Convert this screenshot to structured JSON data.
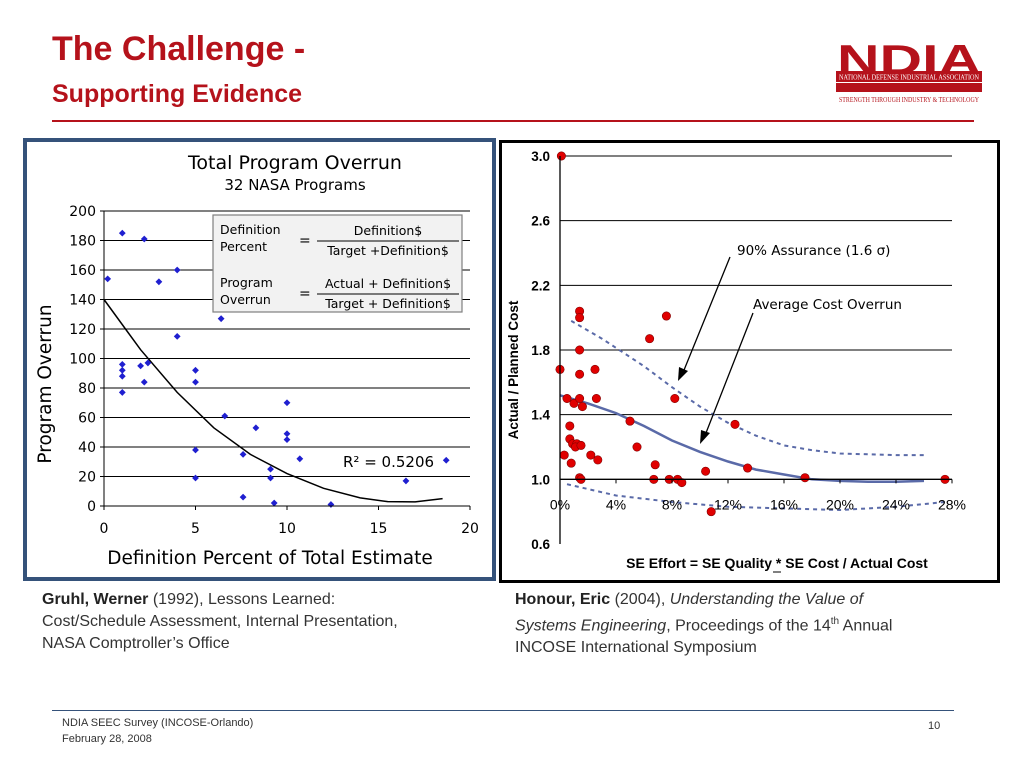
{
  "slide": {
    "title": "The Challenge -",
    "subtitle": "Supporting Evidence",
    "logo": {
      "letters": "NDIA",
      "line1": "NATIONAL DEFENSE INDUSTRIAL ASSOCIATION",
      "line2": "STRENGTH THROUGH INDUSTRY & TECHNOLOGY",
      "color": "#b5121b"
    },
    "footer": {
      "line1": "NDIA SEEC Survey (INCOSE-Orlando)",
      "line2": "February 28, 2008",
      "page": "10"
    },
    "citation_left": {
      "author": "Gruhl, Werner",
      "year": " (1992), Lessons Learned:",
      "line2": "Cost/Schedule Assessment, Internal Presentation,",
      "line3": "NASA Comptroller’s Office"
    },
    "citation_right": {
      "author": "Honour, Eric",
      "year": " (2004), ",
      "title_italic_1": "Understanding the Value of",
      "title_italic_2": "Systems Engineering",
      "rest_1": ", Proceedings of the 14",
      "sup": "th",
      "rest_2": " Annual",
      "line3": "INCOSE International Symposium"
    }
  },
  "chart_data": [
    {
      "type": "scatter",
      "title": "Total Program Overrun",
      "subtitle": "32 NASA Programs",
      "xlabel": "Definition Percent of Total Estimate",
      "ylabel": "Program Overrun",
      "xlim": [
        0,
        20
      ],
      "ylim": [
        0,
        200
      ],
      "xticks": [
        0,
        5,
        10,
        15,
        20
      ],
      "yticks": [
        0,
        20,
        40,
        60,
        80,
        100,
        120,
        140,
        160,
        180,
        200
      ],
      "grid": "horizontal",
      "marker_color": "#1f1fd0",
      "trend_label": "R² = 0.5206",
      "trend": [
        [
          0,
          140
        ],
        [
          2,
          106
        ],
        [
          4,
          77
        ],
        [
          6,
          53
        ],
        [
          8,
          35
        ],
        [
          10,
          22
        ],
        [
          12,
          12
        ],
        [
          14,
          5.5
        ],
        [
          15.5,
          3
        ],
        [
          17,
          2.8
        ],
        [
          18.5,
          5
        ]
      ],
      "formula_box": {
        "row1_label_1": "Definition",
        "row1_label_2": "Percent",
        "row1_eq": "=",
        "row1_num": "Definition$",
        "row1_den": "Target +Definition$",
        "row2_label_1": "Program",
        "row2_label_2": "Overrun",
        "row2_eq": "=",
        "row2_num": "Actual + Definition$",
        "row2_den": "Target + Definition$"
      },
      "points": [
        [
          0.2,
          154
        ],
        [
          1,
          185
        ],
        [
          2.2,
          181
        ],
        [
          3,
          152
        ],
        [
          4,
          160
        ],
        [
          1,
          96
        ],
        [
          1,
          92
        ],
        [
          1,
          88
        ],
        [
          1,
          77
        ],
        [
          2,
          95
        ],
        [
          2.4,
          97
        ],
        [
          2.2,
          84
        ],
        [
          4,
          115
        ],
        [
          5,
          92
        ],
        [
          5,
          84
        ],
        [
          6.4,
          127
        ],
        [
          6.6,
          61
        ],
        [
          5,
          38
        ],
        [
          5,
          19
        ],
        [
          7.6,
          35
        ],
        [
          7.6,
          6
        ],
        [
          8.3,
          53
        ],
        [
          9.1,
          25
        ],
        [
          9.1,
          19
        ],
        [
          9.3,
          2
        ],
        [
          10,
          49
        ],
        [
          10,
          45
        ],
        [
          10,
          70
        ],
        [
          10.7,
          32
        ],
        [
          12.4,
          1
        ],
        [
          16.5,
          17
        ],
        [
          18.7,
          31
        ]
      ]
    },
    {
      "type": "scatter",
      "xlabel": "SE Effort = SE Quality * SE Cost / Actual Cost",
      "ylabel": "Actual / Planned Cost",
      "xlim": [
        0,
        28
      ],
      "ylim": [
        0.6,
        3.0
      ],
      "xticks": [
        "0%",
        "4%",
        "8%",
        "12%",
        "16%",
        "20%",
        "24%",
        "28%"
      ],
      "yticks": [
        "0.6",
        "1.0",
        "1.4",
        "1.8",
        "2.2",
        "2.6",
        "3.0"
      ],
      "grid": "horizontal",
      "marker_color": "#e00000",
      "annotation_1": "90% Assurance  (1.6 σ)",
      "annotation_2": "Average Cost Overrun",
      "average_curve": [
        [
          0,
          1.52
        ],
        [
          2,
          1.47
        ],
        [
          4,
          1.41
        ],
        [
          6,
          1.33
        ],
        [
          8,
          1.24
        ],
        [
          10,
          1.17
        ],
        [
          12,
          1.11
        ],
        [
          14,
          1.06
        ],
        [
          16,
          1.03
        ],
        [
          18,
          1.0
        ],
        [
          20,
          0.99
        ],
        [
          22,
          0.985
        ],
        [
          24,
          0.985
        ],
        [
          26,
          0.99
        ]
      ],
      "upper_curve": [
        [
          0.8,
          1.98
        ],
        [
          3,
          1.87
        ],
        [
          6,
          1.7
        ],
        [
          8,
          1.57
        ],
        [
          10,
          1.45
        ],
        [
          12,
          1.35
        ],
        [
          14,
          1.27
        ],
        [
          16,
          1.21
        ],
        [
          18,
          1.18
        ],
        [
          20,
          1.16
        ],
        [
          22,
          1.155
        ],
        [
          24,
          1.15
        ],
        [
          26,
          1.15
        ]
      ],
      "lower_curve": [
        [
          0.5,
          0.97
        ],
        [
          4,
          0.9
        ],
        [
          8,
          0.86
        ],
        [
          12,
          0.83
        ],
        [
          16,
          0.82
        ],
        [
          20,
          0.81
        ],
        [
          24,
          0.83
        ],
        [
          27.5,
          0.86
        ]
      ],
      "points": [
        [
          0.1,
          3.0
        ],
        [
          0,
          1.68
        ],
        [
          1.4,
          2.04
        ],
        [
          1.4,
          2.0
        ],
        [
          1.4,
          1.8
        ],
        [
          1.4,
          1.65
        ],
        [
          2.5,
          1.68
        ],
        [
          0.5,
          1.5
        ],
        [
          1.0,
          1.47
        ],
        [
          0.7,
          1.33
        ],
        [
          1.4,
          1.5
        ],
        [
          1.6,
          1.45
        ],
        [
          2.6,
          1.5
        ],
        [
          0.7,
          1.25
        ],
        [
          0.9,
          1.22
        ],
        [
          1.2,
          1.22
        ],
        [
          1.1,
          1.2
        ],
        [
          1.5,
          1.21
        ],
        [
          2.2,
          1.15
        ],
        [
          2.7,
          1.12
        ],
        [
          0.8,
          1.1
        ],
        [
          0.3,
          1.15
        ],
        [
          1.4,
          1.01
        ],
        [
          1.5,
          1.0
        ],
        [
          5,
          1.36
        ],
        [
          5.5,
          1.2
        ],
        [
          6.4,
          1.87
        ],
        [
          7.6,
          2.01
        ],
        [
          8.2,
          1.5
        ],
        [
          6.8,
          1.09
        ],
        [
          6.7,
          1.0
        ],
        [
          7.8,
          1.0
        ],
        [
          8.4,
          1.0
        ],
        [
          8.7,
          0.98
        ],
        [
          10.4,
          1.05
        ],
        [
          10.8,
          0.8
        ],
        [
          12.5,
          1.34
        ],
        [
          13.4,
          1.07
        ],
        [
          17.5,
          1.01
        ],
        [
          27.5,
          1.0
        ]
      ]
    }
  ]
}
